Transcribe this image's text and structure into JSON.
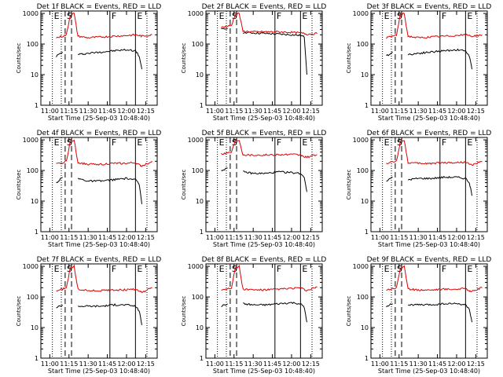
{
  "figure": {
    "xlabel": "Start Time (25-Sep-03 10:48:40)",
    "ylabel": "Counts/sec",
    "series_names": [
      "Events",
      "LLD"
    ],
    "colors": {
      "events": "#000000",
      "lld": "#dd0000",
      "axes": "#000000",
      "background": "#ffffff"
    },
    "yticks": [
      "1",
      "10",
      "100",
      "1000"
    ],
    "xticks": [
      "11:00",
      "11:15",
      "11:30",
      "11:45",
      "12:00",
      "12:15"
    ],
    "markers": [
      "E",
      "S",
      "F",
      "E"
    ]
  },
  "chart_data": [
    {
      "type": "line",
      "title": "Det 1f BLACK = Events, RED = LLD",
      "xlabel": "Start Time (25-Sep-03 10:48:40)",
      "ylabel": "Counts/sec",
      "y_scale": "log",
      "ylim": [
        1,
        1200
      ],
      "xlim": [
        "10:53",
        "12:24"
      ],
      "x": [
        "10:57",
        "11:05",
        "11:10",
        "11:13",
        "11:16",
        "11:19",
        "11:22",
        "11:30",
        "11:40",
        "11:50",
        "12:00",
        "12:07",
        "12:10",
        "12:12",
        "12:20"
      ],
      "series": [
        {
          "name": "Events",
          "color": "#000000",
          "values": [
            null,
            40,
            55,
            null,
            null,
            null,
            45,
            50,
            55,
            60,
            65,
            60,
            40,
            15,
            null
          ]
        },
        {
          "name": "LLD",
          "color": "#dd0000",
          "values": [
            null,
            160,
            180,
            200,
            900,
            1000,
            180,
            160,
            170,
            180,
            190,
            200,
            190,
            180,
            200
          ]
        }
      ],
      "vlines_solid": [
        "11:47",
        "12:07"
      ],
      "vlines_dashed": [
        "11:12",
        "11:17"
      ],
      "vlines_dotted": [
        "11:02",
        "11:09",
        "12:16"
      ]
    },
    {
      "type": "line",
      "title": "Det 2f BLACK = Events, RED = LLD",
      "xlabel": "Start Time (25-Sep-03 10:48:40)",
      "ylabel": "Counts/sec",
      "y_scale": "log",
      "ylim": [
        1,
        1200
      ],
      "xlim": [
        "10:53",
        "12:24"
      ],
      "x": [
        "10:57",
        "11:05",
        "11:10",
        "11:13",
        "11:16",
        "11:19",
        "11:22",
        "11:30",
        "11:40",
        "11:50",
        "12:00",
        "12:07",
        "12:10",
        "12:12",
        "12:20"
      ],
      "series": [
        {
          "name": "Events",
          "color": "#000000",
          "values": [
            null,
            300,
            320,
            null,
            null,
            null,
            240,
            230,
            220,
            210,
            200,
            190,
            170,
            10,
            null
          ]
        },
        {
          "name": "LLD",
          "color": "#dd0000",
          "values": [
            null,
            350,
            380,
            400,
            950,
            1000,
            260,
            250,
            250,
            250,
            240,
            230,
            220,
            210,
            220
          ]
        }
      ],
      "vlines_solid": [
        "11:47",
        "12:07"
      ],
      "vlines_dashed": [
        "11:12",
        "11:17"
      ],
      "vlines_dotted": [
        "11:02",
        "11:09",
        "12:16"
      ]
    },
    {
      "type": "line",
      "title": "Det 3f BLACK = Events, RED = LLD",
      "xlabel": "Start Time (25-Sep-03 10:48:40)",
      "ylabel": "Counts/sec",
      "y_scale": "log",
      "ylim": [
        1,
        1200
      ],
      "xlim": [
        "10:53",
        "12:24"
      ],
      "x": [
        "10:57",
        "11:05",
        "11:10",
        "11:13",
        "11:16",
        "11:19",
        "11:22",
        "11:30",
        "11:40",
        "11:50",
        "12:00",
        "12:07",
        "12:10",
        "12:12",
        "12:20"
      ],
      "series": [
        {
          "name": "Events",
          "color": "#000000",
          "values": [
            null,
            40,
            55,
            null,
            null,
            null,
            45,
            50,
            55,
            60,
            65,
            60,
            40,
            15,
            null
          ]
        },
        {
          "name": "LLD",
          "color": "#dd0000",
          "values": [
            null,
            160,
            180,
            200,
            900,
            1000,
            180,
            160,
            170,
            180,
            190,
            200,
            190,
            180,
            200
          ]
        }
      ],
      "vlines_solid": [
        "11:47",
        "12:07"
      ],
      "vlines_dashed": [
        "11:12",
        "11:17"
      ],
      "vlines_dotted": [
        "11:02",
        "11:09",
        "12:16"
      ]
    },
    {
      "type": "line",
      "title": "Det 4f BLACK = Events, RED = LLD",
      "xlabel": "Start Time (25-Sep-03 10:48:40)",
      "ylabel": "Counts/sec",
      "y_scale": "log",
      "ylim": [
        1,
        1200
      ],
      "xlim": [
        "10:53",
        "12:24"
      ],
      "x": [
        "10:57",
        "11:05",
        "11:10",
        "11:13",
        "11:16",
        "11:19",
        "11:22",
        "11:30",
        "11:40",
        "11:50",
        "12:00",
        "12:07",
        "12:10",
        "12:12",
        "12:20"
      ],
      "series": [
        {
          "name": "Events",
          "color": "#000000",
          "values": [
            null,
            40,
            60,
            null,
            null,
            null,
            55,
            45,
            45,
            50,
            55,
            50,
            35,
            8,
            null
          ]
        },
        {
          "name": "LLD",
          "color": "#dd0000",
          "values": [
            null,
            160,
            180,
            200,
            900,
            1000,
            180,
            160,
            160,
            170,
            170,
            180,
            150,
            140,
            200
          ]
        }
      ],
      "vlines_solid": [
        "11:47",
        "12:07"
      ],
      "vlines_dashed": [
        "11:12",
        "11:17"
      ],
      "vlines_dotted": [
        "11:02",
        "11:09",
        "12:16"
      ]
    },
    {
      "type": "line",
      "title": "Det 5f BLACK = Events, RED = LLD",
      "xlabel": "Start Time (25-Sep-03 10:48:40)",
      "ylabel": "Counts/sec",
      "y_scale": "log",
      "ylim": [
        1,
        1200
      ],
      "xlim": [
        "10:53",
        "12:24"
      ],
      "x": [
        "10:57",
        "11:05",
        "11:10",
        "11:13",
        "11:16",
        "11:19",
        "11:22",
        "11:30",
        "11:40",
        "11:50",
        "12:00",
        "12:07",
        "12:10",
        "12:12",
        "12:20"
      ],
      "series": [
        {
          "name": "Events",
          "color": "#000000",
          "values": [
            null,
            100,
            120,
            null,
            null,
            null,
            90,
            80,
            80,
            90,
            85,
            80,
            60,
            20,
            null
          ]
        },
        {
          "name": "LLD",
          "color": "#dd0000",
          "values": [
            null,
            350,
            380,
            400,
            950,
            1000,
            330,
            320,
            320,
            330,
            330,
            320,
            280,
            270,
            330
          ]
        }
      ],
      "vlines_solid": [
        "11:47",
        "12:07"
      ],
      "vlines_dashed": [
        "11:12",
        "11:17"
      ],
      "vlines_dotted": [
        "11:02",
        "11:09",
        "12:16"
      ]
    },
    {
      "type": "line",
      "title": "Det 6f BLACK = Events, RED = LLD",
      "xlabel": "Start Time (25-Sep-03 10:48:40)",
      "ylabel": "Counts/sec",
      "y_scale": "log",
      "ylim": [
        1,
        1200
      ],
      "xlim": [
        "10:53",
        "12:24"
      ],
      "x": [
        "10:57",
        "11:05",
        "11:10",
        "11:13",
        "11:16",
        "11:19",
        "11:22",
        "11:30",
        "11:40",
        "11:50",
        "12:00",
        "12:07",
        "12:10",
        "12:12",
        "12:20"
      ],
      "series": [
        {
          "name": "Events",
          "color": "#000000",
          "values": [
            null,
            45,
            60,
            null,
            null,
            null,
            50,
            55,
            55,
            60,
            60,
            55,
            40,
            15,
            null
          ]
        },
        {
          "name": "LLD",
          "color": "#dd0000",
          "values": [
            null,
            170,
            190,
            200,
            900,
            1000,
            180,
            170,
            170,
            180,
            180,
            190,
            160,
            150,
            200
          ]
        }
      ],
      "vlines_solid": [
        "11:47",
        "12:07"
      ],
      "vlines_dashed": [
        "11:12",
        "11:17"
      ],
      "vlines_dotted": [
        "11:02",
        "11:09",
        "12:16"
      ]
    },
    {
      "type": "line",
      "title": "Det 7f BLACK = Events, RED = LLD",
      "xlabel": "Start Time (25-Sep-03 10:48:40)",
      "ylabel": "Counts/sec",
      "y_scale": "log",
      "ylim": [
        1,
        1200
      ],
      "xlim": [
        "10:53",
        "12:24"
      ],
      "x": [
        "10:57",
        "11:05",
        "11:10",
        "11:13",
        "11:16",
        "11:19",
        "11:22",
        "11:30",
        "11:40",
        "11:50",
        "12:00",
        "12:07",
        "12:10",
        "12:12",
        "12:20"
      ],
      "series": [
        {
          "name": "Events",
          "color": "#000000",
          "values": [
            null,
            45,
            55,
            null,
            null,
            null,
            50,
            50,
            50,
            55,
            55,
            50,
            35,
            12,
            null
          ]
        },
        {
          "name": "LLD",
          "color": "#dd0000",
          "values": [
            null,
            160,
            180,
            200,
            900,
            1000,
            180,
            160,
            160,
            170,
            170,
            180,
            150,
            140,
            200
          ]
        }
      ],
      "vlines_solid": [
        "11:47",
        "12:07"
      ],
      "vlines_dashed": [
        "11:12",
        "11:17"
      ],
      "vlines_dotted": [
        "11:02",
        "11:09",
        "12:16"
      ]
    },
    {
      "type": "line",
      "title": "Det 8f BLACK = Events, RED = LLD",
      "xlabel": "Start Time (25-Sep-03 10:48:40)",
      "ylabel": "Counts/sec",
      "y_scale": "log",
      "ylim": [
        1,
        1200
      ],
      "xlim": [
        "10:53",
        "12:24"
      ],
      "x": [
        "10:57",
        "11:05",
        "11:10",
        "11:13",
        "11:16",
        "11:19",
        "11:22",
        "11:30",
        "11:40",
        "11:50",
        "12:00",
        "12:07",
        "12:10",
        "12:12",
        "12:20"
      ],
      "series": [
        {
          "name": "Events",
          "color": "#000000",
          "values": [
            null,
            50,
            60,
            null,
            null,
            null,
            60,
            55,
            55,
            60,
            65,
            60,
            45,
            15,
            null
          ]
        },
        {
          "name": "LLD",
          "color": "#dd0000",
          "values": [
            null,
            170,
            190,
            200,
            900,
            1000,
            180,
            170,
            170,
            180,
            190,
            200,
            170,
            160,
            210
          ]
        }
      ],
      "vlines_solid": [
        "11:47",
        "12:07"
      ],
      "vlines_dashed": [
        "11:12",
        "11:17"
      ],
      "vlines_dotted": [
        "11:02",
        "11:09",
        "12:16"
      ]
    },
    {
      "type": "line",
      "title": "Det 9f BLACK = Events, RED = LLD",
      "xlabel": "Start Time (25-Sep-03 10:48:40)",
      "ylabel": "Counts/sec",
      "y_scale": "log",
      "ylim": [
        1,
        1200
      ],
      "xlim": [
        "10:53",
        "12:24"
      ],
      "x": [
        "10:57",
        "11:05",
        "11:10",
        "11:13",
        "11:16",
        "11:19",
        "11:22",
        "11:30",
        "11:40",
        "11:50",
        "12:00",
        "12:07",
        "12:10",
        "12:12",
        "12:20"
      ],
      "series": [
        {
          "name": "Events",
          "color": "#000000",
          "values": [
            null,
            50,
            60,
            null,
            null,
            null,
            55,
            55,
            55,
            60,
            60,
            55,
            40,
            15,
            null
          ]
        },
        {
          "name": "LLD",
          "color": "#dd0000",
          "values": [
            null,
            170,
            190,
            200,
            900,
            1000,
            180,
            170,
            170,
            180,
            180,
            190,
            160,
            150,
            200
          ]
        }
      ],
      "vlines_solid": [
        "11:47",
        "12:07"
      ],
      "vlines_dashed": [
        "11:12",
        "11:17"
      ],
      "vlines_dotted": [
        "11:02",
        "11:09",
        "12:16"
      ]
    }
  ]
}
